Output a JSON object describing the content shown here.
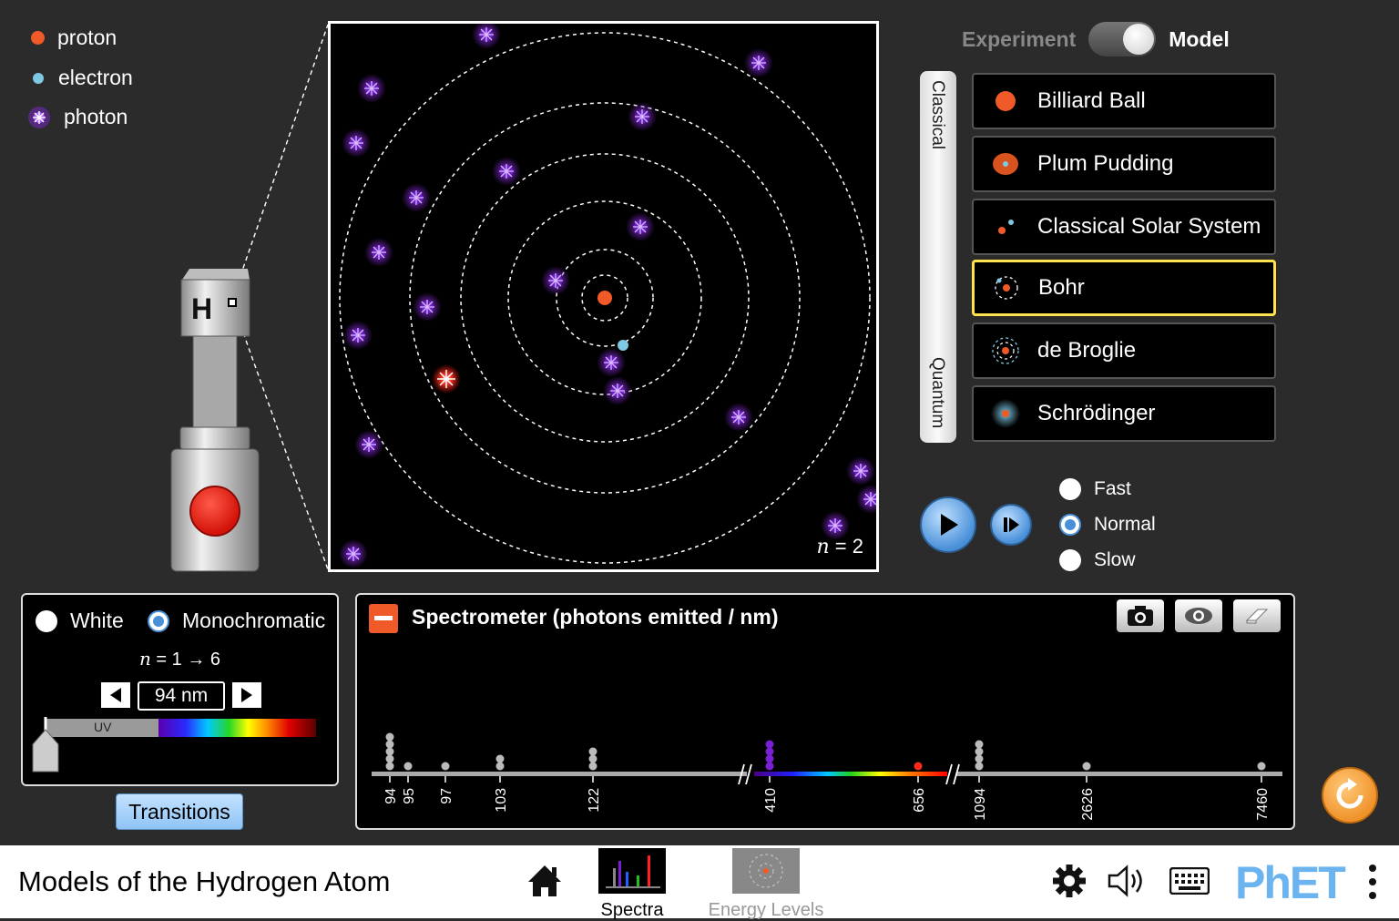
{
  "legend": {
    "items": [
      {
        "label": "proton",
        "color": "#f05a28"
      },
      {
        "label": "electron",
        "color": "#7ec8e3"
      },
      {
        "label": "photon",
        "color": "#8a2be2"
      }
    ]
  },
  "source": {
    "label": "H"
  },
  "atom_view": {
    "state_label": "n = 2",
    "n_symbol": "n",
    "n_value": "= 2"
  },
  "mode_toggle": {
    "left": "Experiment",
    "right": "Model",
    "selected": "Model"
  },
  "model_groups": {
    "classical": "Classical",
    "quantum": "Quantum"
  },
  "models": [
    {
      "label": "Billiard Ball",
      "icon": "billiard-ball-icon"
    },
    {
      "label": "Plum Pudding",
      "icon": "plum-pudding-icon"
    },
    {
      "label": "Classical Solar System",
      "icon": "classical-solar-system-icon"
    },
    {
      "label": "Bohr",
      "icon": "bohr-icon",
      "selected": true
    },
    {
      "label": "de Broglie",
      "icon": "de-broglie-icon"
    },
    {
      "label": "Schrödinger",
      "icon": "schrodinger-icon"
    }
  ],
  "speed": {
    "options": [
      "Fast",
      "Normal",
      "Slow"
    ],
    "selected": "Normal"
  },
  "light": {
    "options": [
      "White",
      "Monochromatic"
    ],
    "selected": "Monochromatic",
    "transition": "n = 1 → 6",
    "transition_n": "n",
    "transition_rest": "= 1 → 6",
    "wavelength": "94 nm",
    "uv_label": "UV",
    "transitions_button": "Transitions"
  },
  "spectrometer": {
    "title": "Spectrometer (photons emitted / nm)",
    "ticks": [
      {
        "label": "94",
        "count": 5,
        "color": "#bbbbbb"
      },
      {
        "label": "95",
        "count": 1,
        "color": "#bbbbbb"
      },
      {
        "label": "97",
        "count": 1,
        "color": "#bbbbbb"
      },
      {
        "label": "103",
        "count": 2,
        "color": "#bbbbbb"
      },
      {
        "label": "122",
        "count": 3,
        "color": "#bbbbbb"
      },
      {
        "label": "410",
        "count": 4,
        "color": "#7a1fd6"
      },
      {
        "label": "656",
        "count": 1,
        "color": "#ff2a1a"
      },
      {
        "label": "1094",
        "count": 4,
        "color": "#bbbbbb"
      },
      {
        "label": "2626",
        "count": 1,
        "color": "#bbbbbb"
      },
      {
        "label": "7460",
        "count": 1,
        "color": "#bbbbbb"
      }
    ]
  },
  "navbar": {
    "title": "Models of the Hydrogen Atom",
    "tabs": [
      "Spectra",
      "Energy Levels"
    ],
    "active_tab": "Spectra",
    "brand": "PhET"
  },
  "colors": {
    "accent": "#ffe34d",
    "play": "#4a90d9",
    "orange": "#f0932b"
  }
}
